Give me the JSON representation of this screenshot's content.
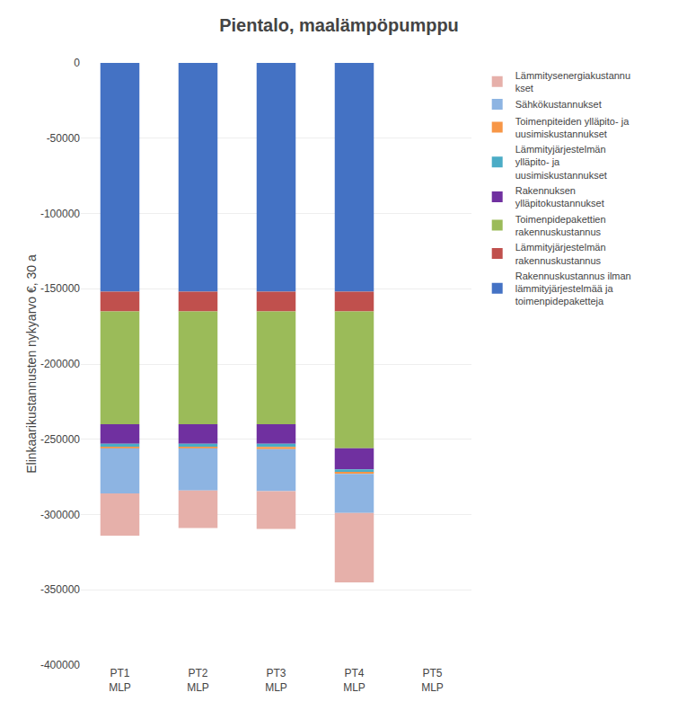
{
  "chart_data": {
    "type": "bar",
    "title": "Pientalo, maalämpöpumppu",
    "ylabel": "Elinkaarikustannusten nykyarvo €, 30 a",
    "categories": [
      "PT1\nMLP",
      "PT2\nMLP",
      "PT3\nMLP",
      "PT4\nMLP",
      "PT5\nMLP"
    ],
    "series": [
      {
        "name": "Rakennuskustannus ilman\nlämmityjärjestelmää ja\ntoimenpidepaketteja",
        "color": "#4472C4",
        "values": [
          -152000,
          -152000,
          -152000,
          -152000,
          0
        ]
      },
      {
        "name": "Lämmityjärjestelmän\nrakennuskustannus",
        "color": "#C0504D",
        "values": [
          -13000,
          -13000,
          -13000,
          -13000,
          0
        ]
      },
      {
        "name": "Toimenpidepakettien\nrakennuskustannus",
        "color": "#9BBB59",
        "values": [
          -75000,
          -75000,
          -75000,
          -91000,
          0
        ]
      },
      {
        "name": "Rakennuksen\nylläpitokustannukset",
        "color": "#7030A0",
        "values": [
          -13000,
          -13000,
          -13000,
          -14000,
          0
        ]
      },
      {
        "name": "Lämmityjärjestelmän\nylläpito- ja\nuusimiskustannukset",
        "color": "#4BACC6",
        "values": [
          -2000,
          -2000,
          -2000,
          -2000,
          0
        ]
      },
      {
        "name": "Toimenpiteiden ylläpito- ja\nuusimiskustannukset",
        "color": "#F79646",
        "values": [
          -1000,
          -1000,
          -1500,
          -1000,
          0
        ]
      },
      {
        "name": "Sähkökustannukset",
        "color": "#8DB4E2",
        "values": [
          -30000,
          -28000,
          -28000,
          -26000,
          0
        ]
      },
      {
        "name": "Lämmitysenergiakustannu\nkset",
        "color": "#E6B0AA",
        "values": [
          -28000,
          -25000,
          -25000,
          -46000,
          0
        ]
      }
    ],
    "ylim": [
      -400000,
      0
    ],
    "yticks": [
      -400000,
      -350000,
      -300000,
      -250000,
      -200000,
      -150000,
      -100000,
      -50000,
      0
    ],
    "stacked": true,
    "grid": true,
    "legend": "right"
  }
}
